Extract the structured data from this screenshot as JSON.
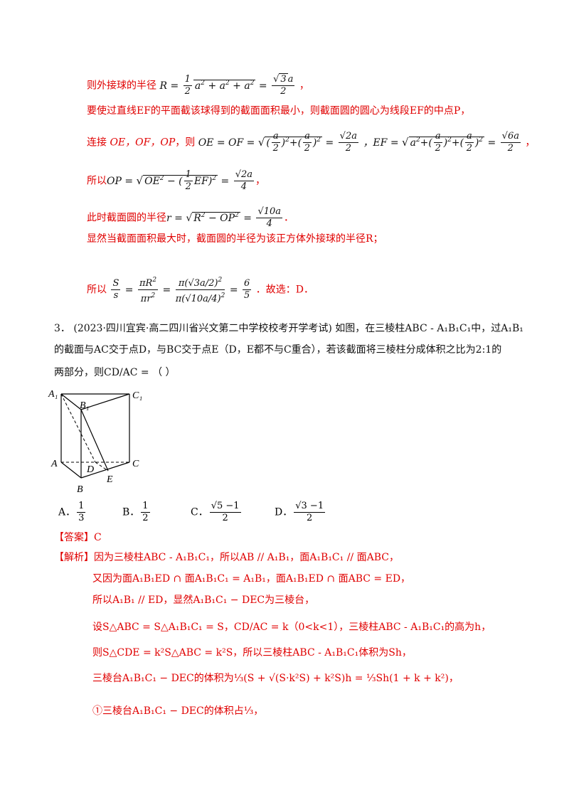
{
  "solution_top": {
    "l1_prefix": "则外接球的半径",
    "l1_formula": "R = ½√(a² + a² + a²) = √3a/2",
    "l1_suffix": "，",
    "l2": "要使过直线EF的平面截该球得到的截面面积最小，则截面圆的圆心为线段EF的中点P，",
    "l3_prefix": "连接",
    "l3_mid": "OE，OF，OP，则",
    "l3_formula_a": "OE = OF = √((a/2)² + (a/2)²) = √2a/2",
    "l3_formula_b": "，EF = √(a² + (a/2)² + (a/2)²) = √6a/2",
    "l3_suffix": "，",
    "l4_prefix": "所以",
    "l4_formula": "OP = √(OE² − (½EF)²) = √2a/4",
    "l4_suffix": "，",
    "l5_prefix": "此时截面圆的半径",
    "l5_formula": "r = √(R² − OP²) = √10a/4",
    "l5_suffix": "．",
    "l6": "显然当截面面积最大时，截面圆的半径为该正方体外接球的半径R；",
    "l7_prefix": "所以",
    "l7_formula": "S/s = πR²/πr² = π(√3a/2)² / π(√10a/4)² = 6/5",
    "l7_suffix": "．故选：D．"
  },
  "question": {
    "number": "3．",
    "source": "(2023·四川宜宾·高二四川省兴文第二中学校校考开学考试)",
    "text1": "如图，在三棱柱ABC - A₁B₁C₁中，过A₁B₁",
    "text2": "的截面与AC交于点D，与BC交于点E（D，E都不与C重合），若该截面将三棱柱分成体积之比为2:1的",
    "text3": "两部分，则CD/AC = （    ）"
  },
  "figure": {
    "labels": [
      "A₁",
      "B₁",
      "C₁",
      "A",
      "D",
      "C",
      "E",
      "B"
    ]
  },
  "options": [
    {
      "letter": "A．",
      "value": "1/3"
    },
    {
      "letter": "B．",
      "value": "1/2"
    },
    {
      "letter": "C．",
      "value": "(√5−1)/2"
    },
    {
      "letter": "D．",
      "value": "(√3−1)/2"
    }
  ],
  "answer": {
    "tag": "【答案】",
    "value": "C"
  },
  "analysis": {
    "tag": "【解析】",
    "l1": "因为三棱柱ABC - A₁B₁C₁，所以AB // A₁B₁，面A₁B₁C₁ // 面ABC，",
    "l2": "又因为面A₁B₁ED ∩ 面A₁B₁C₁ = A₁B₁，面A₁B₁ED ∩ 面ABC = ED，",
    "l3": "所以A₁B₁ // ED，显然A₁B₁C₁ − DEC为三棱台，",
    "l4": "设S△ABC = S△A₁B₁C₁ = S，CD/AC = k（0<k<1），三棱柱ABC - A₁B₁C₁的高为h，",
    "l5": "则S△CDE = k²S△ABC = k²S，所以三棱柱ABC - A₁B₁C₁体积为Sh，",
    "l6": "三棱台A₁B₁C₁ − DEC的体积为⅓(S + √(S·k²S) + k²S)h = ⅓Sh(1 + k + k²)，",
    "l7": "①三棱台A₁B₁C₁ − DEC的体积占⅓，"
  },
  "colors": {
    "accent_red": "#e00000",
    "text": "#111111"
  }
}
